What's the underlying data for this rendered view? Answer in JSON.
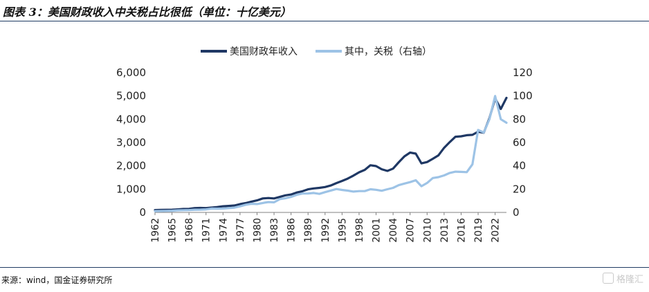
{
  "figure_title": "图表 3：美国财政收入中关税占比很低（单位：十亿美元）",
  "source_note": "来源：wind，国金证券研究所",
  "watermark": "格隆汇",
  "colors": {
    "revenue": "#1f3864",
    "tariff": "#9dc3e6",
    "rule": "#1f3b63"
  },
  "chart_data": {
    "type": "line",
    "title": "",
    "legend_position": "top-center",
    "grid": false,
    "x_tick_labels": [
      "1962",
      "1965",
      "1968",
      "1971",
      "1974",
      "1977",
      "1980",
      "1983",
      "1986",
      "1989",
      "1992",
      "1995",
      "1998",
      "2001",
      "2004",
      "2007",
      "2010",
      "2013",
      "2016",
      "2019",
      "2022"
    ],
    "x": [
      1962,
      1963,
      1964,
      1965,
      1966,
      1967,
      1968,
      1969,
      1970,
      1971,
      1972,
      1973,
      1974,
      1975,
      1976,
      1977,
      1978,
      1979,
      1980,
      1981,
      1982,
      1983,
      1984,
      1985,
      1986,
      1987,
      1988,
      1989,
      1990,
      1991,
      1992,
      1993,
      1994,
      1995,
      1996,
      1997,
      1998,
      1999,
      2000,
      2001,
      2002,
      2003,
      2004,
      2005,
      2006,
      2007,
      2008,
      2009,
      2010,
      2011,
      2012,
      2013,
      2014,
      2015,
      2016,
      2017,
      2018,
      2019,
      2020,
      2021,
      2022,
      2023,
      2024
    ],
    "xlim": [
      1962,
      2024
    ],
    "y_left": {
      "lim": [
        0,
        6000
      ],
      "ticks": [
        "0",
        "1,000",
        "2,000",
        "3,000",
        "4,000",
        "5,000",
        "6,000"
      ]
    },
    "y_right": {
      "lim": [
        0,
        120
      ],
      "ticks": [
        "0",
        "20",
        "40",
        "60",
        "80",
        "100",
        "120"
      ]
    },
    "series": [
      {
        "name": "美国财政年收入",
        "axis": "left",
        "values": [
          100,
          107,
          113,
          117,
          131,
          149,
          153,
          187,
          193,
          187,
          207,
          231,
          263,
          279,
          298,
          356,
          400,
          463,
          517,
          599,
          618,
          601,
          666,
          734,
          769,
          854,
          909,
          991,
          1032,
          1055,
          1091,
          1154,
          1259,
          1352,
          1453,
          1579,
          1722,
          1827,
          2025,
          1991,
          1853,
          1782,
          1880,
          2154,
          2407,
          2568,
          2524,
          2105,
          2163,
          2303,
          2450,
          2775,
          3021,
          3250,
          3268,
          3316,
          3330,
          3463,
          3421,
          4047,
          4897,
          4441,
          4918
        ]
      },
      {
        "name": "其中，关税（右轴）",
        "axis": "right",
        "values": [
          1.1,
          1.2,
          1.3,
          1.4,
          1.8,
          1.9,
          2.0,
          2.3,
          2.4,
          2.6,
          3.3,
          3.2,
          3.3,
          3.7,
          4.1,
          5.2,
          6.6,
          7.4,
          7.2,
          8.1,
          8.9,
          8.7,
          11.4,
          12.1,
          13.3,
          15.1,
          16.2,
          16.3,
          16.7,
          15.9,
          17.4,
          18.8,
          20.1,
          19.3,
          18.7,
          17.9,
          18.3,
          18.3,
          19.9,
          19.4,
          18.6,
          19.9,
          21.1,
          23.4,
          24.8,
          26.0,
          27.6,
          22.5,
          25.3,
          29.5,
          30.3,
          31.8,
          33.9,
          35.0,
          34.8,
          34.6,
          41.3,
          70.8,
          68.6,
          80.0,
          100.0,
          80.0,
          77.0
        ]
      }
    ]
  }
}
